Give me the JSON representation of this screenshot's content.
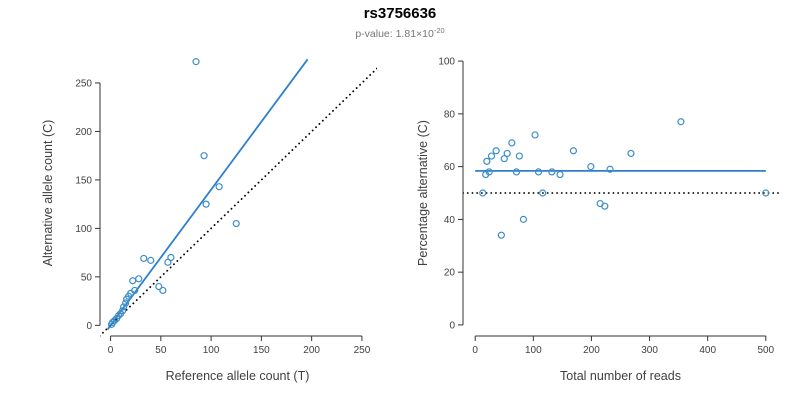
{
  "header": {
    "title": "rs3756636",
    "pvalue_label": "p-value: ",
    "pvalue_mantissa": "1.81×10",
    "pvalue_exponent": "-20"
  },
  "style": {
    "point_color": "#3d8ec8",
    "fit_line_color": "#2e7fd0",
    "identity_line_color": "#000000",
    "axis_color": "#333333",
    "tick_label_color": "#404040",
    "axis_label_color": "#1a1a1a",
    "subtitle_color": "#757575"
  },
  "chart_data": [
    {
      "type": "scatter",
      "name": "allele-counts",
      "xlabel": "Reference allele count (T)",
      "ylabel": "Alternative allele count (C)",
      "xticks": [
        0,
        50,
        100,
        150,
        200,
        250
      ],
      "yticks": [
        0,
        50,
        100,
        150,
        200,
        250
      ],
      "xlim": [
        -10.5,
        263
      ],
      "ylim": [
        -11,
        284
      ],
      "points": [
        [
          1,
          1
        ],
        [
          2,
          3
        ],
        [
          4,
          5
        ],
        [
          6,
          7
        ],
        [
          8,
          10
        ],
        [
          10,
          12
        ],
        [
          12,
          15
        ],
        [
          13,
          19
        ],
        [
          15,
          23
        ],
        [
          16,
          27
        ],
        [
          18,
          30
        ],
        [
          20,
          33
        ],
        [
          22,
          46
        ],
        [
          24,
          36
        ],
        [
          28,
          48
        ],
        [
          33,
          69
        ],
        [
          40,
          67
        ],
        [
          48,
          40
        ],
        [
          52,
          36
        ],
        [
          57,
          65
        ],
        [
          60,
          70
        ],
        [
          85,
          272
        ],
        [
          93,
          175
        ],
        [
          95,
          125
        ],
        [
          108,
          143
        ],
        [
          125,
          105
        ]
      ],
      "lines": [
        {
          "name": "regression-line",
          "style": "solid",
          "color": "#2e7fd0",
          "x1": -3,
          "y1": -4.2,
          "x2": 196,
          "y2": 274.4
        },
        {
          "name": "identity-line",
          "style": "dotted",
          "color": "#000000",
          "x1": -11,
          "y1": -11,
          "x2": 284,
          "y2": 284
        }
      ]
    },
    {
      "type": "scatter",
      "name": "percentage-vs-depth",
      "xlabel": "Total number of reads",
      "ylabel": "Percentage alternative (C)",
      "xticks": [
        0,
        100,
        200,
        300,
        400,
        500
      ],
      "yticks": [
        0,
        20,
        40,
        60,
        80,
        100
      ],
      "xlim": [
        -21,
        521
      ],
      "ylim": [
        -4.2,
        104.2
      ],
      "points": [
        [
          13,
          50
        ],
        [
          18,
          57
        ],
        [
          20,
          62
        ],
        [
          24,
          58
        ],
        [
          28,
          64
        ],
        [
          36,
          66
        ],
        [
          45,
          34
        ],
        [
          50,
          63
        ],
        [
          55,
          65
        ],
        [
          63,
          69
        ],
        [
          71,
          58
        ],
        [
          76,
          64
        ],
        [
          83,
          40
        ],
        [
          103,
          72
        ],
        [
          109,
          58
        ],
        [
          116,
          50
        ],
        [
          132,
          58
        ],
        [
          146,
          57
        ],
        [
          169,
          66
        ],
        [
          199,
          60
        ],
        [
          215,
          46
        ],
        [
          223,
          45
        ],
        [
          232,
          59
        ],
        [
          268,
          65
        ],
        [
          354,
          77
        ],
        [
          500,
          50
        ]
      ],
      "lines": [
        {
          "name": "mean-percentage-line",
          "style": "solid",
          "color": "#2e7fd0",
          "x1": 0,
          "y1": 58.4,
          "x2": 500,
          "y2": 58.4
        },
        {
          "name": "fifty-percent-line",
          "style": "dotted",
          "color": "#000000",
          "x1": -21,
          "y1": 50,
          "x2": 521,
          "y2": 50
        }
      ]
    }
  ]
}
